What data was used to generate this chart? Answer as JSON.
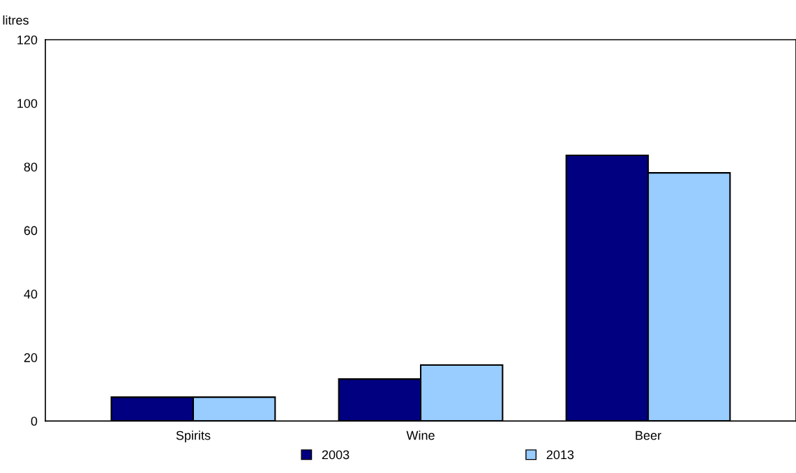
{
  "chart_data": {
    "type": "bar",
    "ylabel": "litres",
    "categories": [
      "Spirits",
      "Wine",
      "Beer"
    ],
    "series": [
      {
        "name": "2003",
        "color": "#000080",
        "values": [
          7.5,
          13.2,
          83.6
        ]
      },
      {
        "name": "2013",
        "color": "#99ccff",
        "values": [
          7.5,
          17.6,
          78.1
        ]
      }
    ],
    "ylim": [
      0,
      120
    ],
    "yticks": [
      0,
      20,
      40,
      60,
      80,
      100,
      120
    ],
    "grid": false,
    "legend": "bottom"
  }
}
